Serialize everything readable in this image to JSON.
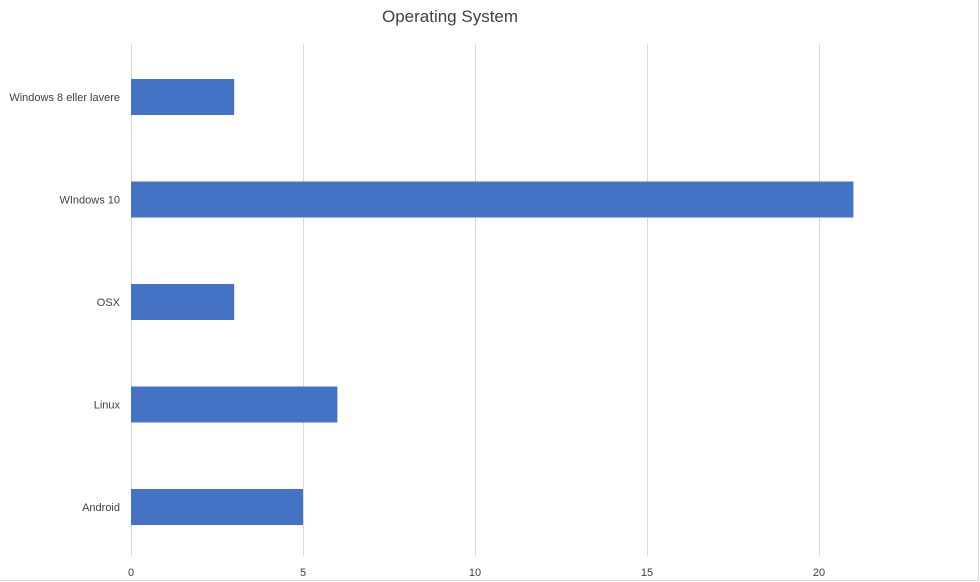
{
  "chart_data": {
    "type": "bar",
    "orientation": "horizontal",
    "title": "Operating System",
    "categories": [
      "Windows 8 eller lavere",
      "WIndows 10",
      "OSX",
      "Linux",
      "Android"
    ],
    "values": [
      3,
      21,
      3,
      6,
      5
    ],
    "xlim": [
      0,
      25
    ],
    "xticks": [
      0,
      5,
      10,
      15,
      20
    ],
    "xlabel": "",
    "ylabel": "",
    "grid": "vertical",
    "legend": "none",
    "bar_color": "#4472C4",
    "gridline_color": "#d9d9d9"
  }
}
